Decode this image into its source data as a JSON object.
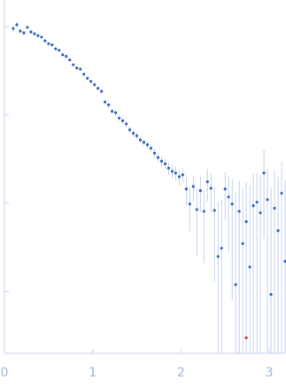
{
  "chart_data": {
    "type": "scatter",
    "log_y": true,
    "xlim": [
      0,
      3.18
    ],
    "xticks": [
      0,
      1,
      2,
      3
    ],
    "ylim": [
      0.0002,
      2
    ],
    "yticks": [
      1,
      0.1,
      0.01,
      0.001
    ],
    "color": "#3a68c0",
    "error_color": "#b9c8e6",
    "x": [
      0.1,
      0.14,
      0.18,
      0.22,
      0.26,
      0.3,
      0.34,
      0.38,
      0.42,
      0.46,
      0.5,
      0.54,
      0.58,
      0.62,
      0.66,
      0.7,
      0.74,
      0.78,
      0.82,
      0.86,
      0.9,
      0.94,
      0.98,
      1.02,
      1.06,
      1.1,
      1.14,
      1.18,
      1.22,
      1.26,
      1.3,
      1.34,
      1.38,
      1.42,
      1.46,
      1.5,
      1.54,
      1.58,
      1.62,
      1.66,
      1.7,
      1.74,
      1.78,
      1.82,
      1.86,
      1.9,
      1.94,
      1.98,
      2.02,
      2.06,
      2.1,
      2.14,
      2.18,
      2.22,
      2.26,
      2.3,
      2.34,
      2.38,
      2.42,
      2.46,
      2.5,
      2.54,
      2.58,
      2.62,
      2.66,
      2.7,
      2.74,
      2.78,
      2.82,
      2.86,
      2.9,
      2.94,
      2.98,
      3.02,
      3.06,
      3.1,
      3.14,
      3.18
    ],
    "values": [
      0.95,
      1.05,
      0.89,
      0.85,
      0.98,
      0.87,
      0.83,
      0.79,
      0.76,
      0.69,
      0.64,
      0.62,
      0.56,
      0.54,
      0.48,
      0.46,
      0.42,
      0.37,
      0.34,
      0.33,
      0.29,
      0.26,
      0.24,
      0.22,
      0.2,
      0.185,
      0.14,
      0.13,
      0.11,
      0.106,
      0.092,
      0.086,
      0.079,
      0.068,
      0.062,
      0.058,
      0.052,
      0.049,
      0.046,
      0.042,
      0.037,
      0.033,
      0.03,
      0.028,
      0.025,
      0.023,
      0.022,
      0.02,
      0.021,
      0.0145,
      0.0098,
      0.0155,
      0.0085,
      0.0139,
      0.0081,
      0.0175,
      0.0148,
      0.0083,
      0.0025,
      0.0031,
      0.0145,
      0.0118,
      0.0098,
      0.0012,
      0.0081,
      0.0035,
      0.0062,
      0.0019,
      0.0094,
      0.0103,
      0.0078,
      0.022,
      0.011,
      0.00093,
      0.0088,
      0.0049,
      0.013,
      0.0022
    ],
    "errors": [
      0.08,
      0.08,
      0.06,
      0.05,
      0.04,
      0.02,
      0.02,
      0.02,
      0.02,
      0.02,
      0.02,
      0.02,
      0.02,
      0.02,
      0.02,
      0.02,
      0.015,
      0.015,
      0.015,
      0.015,
      0.012,
      0.012,
      0.01,
      0.01,
      0.01,
      0.01,
      0.008,
      0.008,
      0.007,
      0.007,
      0.006,
      0.006,
      0.006,
      0.005,
      0.005,
      0.005,
      0.004,
      0.004,
      0.004,
      0.004,
      0.004,
      0.004,
      0.004,
      0.004,
      0.004,
      0.004,
      0.004,
      0.004,
      0.004,
      0.005,
      0.005,
      0.005,
      0.006,
      0.006,
      0.006,
      0.007,
      0.007,
      0.007,
      0.008,
      0.008,
      0.008,
      0.009,
      0.009,
      0.012,
      0.01,
      0.011,
      0.011,
      0.014,
      0.012,
      0.012,
      0.013,
      0.018,
      0.014,
      0.014,
      0.015,
      0.015,
      0.016,
      0.016
    ],
    "outliers": {
      "x": [
        2.74
      ],
      "values": [
        0.0003
      ],
      "color": "#d6332b"
    }
  }
}
